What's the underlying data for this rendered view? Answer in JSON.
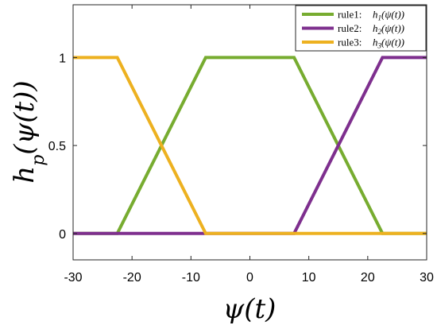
{
  "chart_data": {
    "type": "line",
    "title": "",
    "xlabel": "ψ(t)",
    "ylabel": "h_p(ψ(t))",
    "xlim": [
      -30,
      30
    ],
    "ylim": [
      -0.15,
      1.3
    ],
    "xticks": [
      -30,
      -20,
      -10,
      0,
      10,
      20,
      30
    ],
    "yticks": [
      0,
      0.5,
      1
    ],
    "xtick_labels": [
      "-30",
      "-20",
      "-10",
      "0",
      "10",
      "20",
      "30"
    ],
    "ytick_labels": [
      "0",
      "0.5",
      "1"
    ],
    "grid": false,
    "legend_position": "top-right",
    "series": [
      {
        "name": "rule1:",
        "legend_math": "h1(ψ(t))",
        "color": "#77ac30",
        "x": [
          -30,
          -22.5,
          -7.5,
          7.5,
          22.5,
          30
        ],
        "y": [
          0,
          0,
          1,
          1,
          0,
          0
        ]
      },
      {
        "name": "rule2:",
        "legend_math": "h2(ψ(t))",
        "color": "#7e2f8e",
        "x": [
          -30,
          7.5,
          22.5,
          30
        ],
        "y": [
          0,
          0,
          1,
          1
        ]
      },
      {
        "name": "rule3:",
        "legend_math": "h3(ψ(t))",
        "color": "#edb120",
        "x": [
          -30,
          -22.5,
          -7.5,
          30
        ],
        "y": [
          1,
          1,
          0,
          0
        ]
      }
    ]
  }
}
